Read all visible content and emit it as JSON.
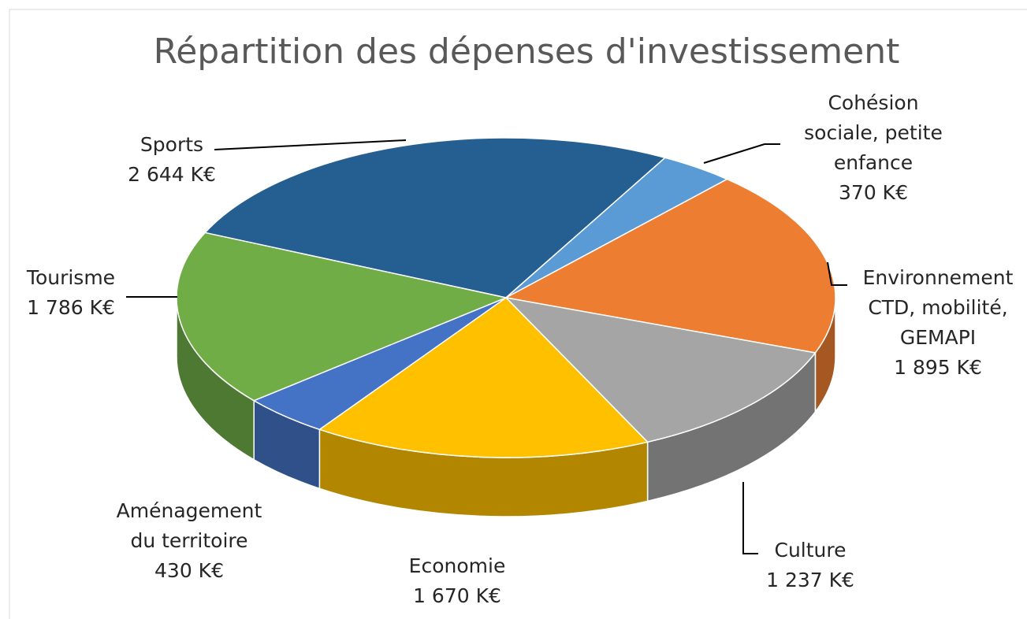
{
  "chart_data": {
    "type": "pie3d",
    "title": "Répartition des dépenses d'investissement",
    "categories": [
      "Sports",
      "Cohésion\nsociale, petite\nenfance",
      "Environnement\nCTD, mobilité,\nGEMAPI",
      "Culture",
      "Economie",
      "Aménagement\ndu territoire",
      "Tourisme"
    ],
    "values": [
      2644,
      370,
      1895,
      1237,
      1670,
      430,
      1786
    ],
    "value_labels": [
      "2 644 K€",
      "370 K€",
      "1 895 K€",
      "1 237 K€",
      "1 670 K€",
      "430 K€",
      "1 786 K€"
    ],
    "colors": [
      "#255e91",
      "#5b9bd5",
      "#ed7d31",
      "#a5a5a5",
      "#ffc000",
      "#4472c4",
      "#70ad47"
    ]
  }
}
